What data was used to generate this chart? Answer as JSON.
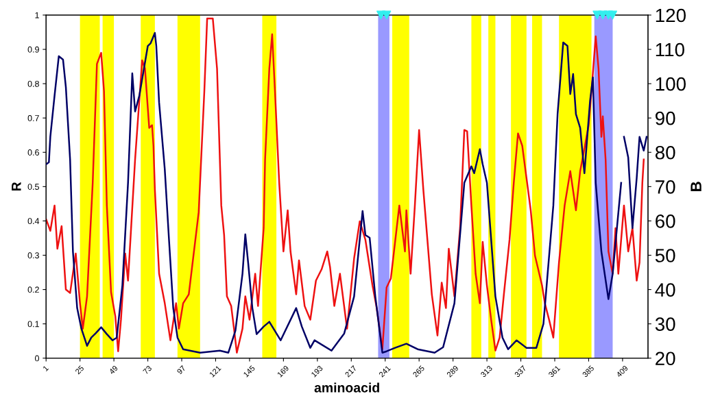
{
  "chart_data": {
    "type": "line",
    "xlabel": "aminoacid",
    "ylabel": "R",
    "y2label": "B",
    "xlim": [
      1,
      427
    ],
    "xticks": [
      1,
      25,
      49,
      73,
      97,
      121,
      145,
      169,
      193,
      217,
      241,
      265,
      289,
      313,
      337,
      361,
      385,
      409
    ],
    "ylim": [
      0,
      1
    ],
    "yticks": [
      0,
      0.1,
      0.2,
      0.3,
      0.4,
      0.5,
      0.6,
      0.7,
      0.8,
      0.9,
      1
    ],
    "y2lim": [
      20,
      120
    ],
    "y2ticks": [
      20,
      30,
      40,
      50,
      60,
      70,
      80,
      90,
      100,
      110,
      120
    ],
    "grid": false,
    "marker": "none",
    "line_style": "solid",
    "series": [
      {
        "color": "#000066",
        "x": [
          1,
          3,
          4,
          7,
          10,
          13,
          15,
          18,
          20,
          23,
          26,
          30,
          33,
          36,
          40,
          44,
          48,
          51,
          55,
          59,
          62,
          64,
          67,
          73,
          75,
          78,
          79,
          81,
          85,
          88,
          91,
          94,
          98,
          110,
          124,
          130,
          135,
          140,
          142,
          144,
          147,
          150,
          155,
          159,
          167,
          178,
          182,
          188,
          191,
          203,
          212,
          219,
          225,
          227,
          230,
          234,
          239,
          242,
          248,
          256,
          264,
          276,
          282,
          290,
          297,
          302,
          304,
          308,
          310,
          313,
          319,
          324,
          328,
          334,
          341,
          348,
          353,
          360,
          363,
          367,
          370,
          372,
          374,
          376,
          379,
          382,
          386,
          388,
          390,
          394,
          399,
          402,
          405,
          408,
          409,
          410,
          413,
          416,
          419,
          421,
          424,
          426
        ],
        "values": [
          0.565,
          0.571,
          0.645,
          0.765,
          0.88,
          0.87,
          0.79,
          0.579,
          0.311,
          0.146,
          0.086,
          0.036,
          0.06,
          0.072,
          0.09,
          0.07,
          0.052,
          0.06,
          0.212,
          0.511,
          0.83,
          0.719,
          0.765,
          0.91,
          0.918,
          0.948,
          0.91,
          0.745,
          0.551,
          0.345,
          0.146,
          0.06,
          0.026,
          0.016,
          0.022,
          0.016,
          0.08,
          0.246,
          0.361,
          0.279,
          0.146,
          0.07,
          0.092,
          0.106,
          0.052,
          0.146,
          0.092,
          0.03,
          0.052,
          0.022,
          0.072,
          0.18,
          0.429,
          0.359,
          0.351,
          0.18,
          0.016,
          0.02,
          0.03,
          0.042,
          0.026,
          0.016,
          0.032,
          0.16,
          0.511,
          0.559,
          0.539,
          0.609,
          0.565,
          0.511,
          0.18,
          0.06,
          0.026,
          0.052,
          0.03,
          0.03,
          0.1,
          0.445,
          0.711,
          0.92,
          0.91,
          0.77,
          0.828,
          0.711,
          0.671,
          0.539,
          0.75,
          0.818,
          0.511,
          0.311,
          0.172,
          0.246,
          0.379,
          0.511,
          null,
          0.645,
          0.585,
          0.379,
          0.525,
          0.645,
          0.605,
          0.645
        ]
      },
      {
        "color": "#ee1111",
        "axis": "y2",
        "x": [
          1,
          4,
          7,
          9,
          12,
          15,
          18,
          22,
          25,
          27,
          30,
          34,
          37,
          40,
          42,
          44,
          47,
          50,
          52,
          54,
          57,
          59,
          64,
          69,
          71,
          74,
          76,
          77,
          78,
          81,
          85,
          89,
          93,
          95,
          98,
          102,
          109,
          113,
          115,
          119,
          122,
          125,
          127,
          129,
          132,
          134,
          136,
          140,
          142,
          145,
          149,
          151,
          155,
          156,
          159,
          161,
          163,
          166,
          169,
          172,
          174,
          178,
          180,
          184,
          188,
          192,
          196,
          200,
          202,
          205,
          209,
          214,
          219,
          223,
          227,
          232,
          235,
          239,
          242,
          245,
          251,
          255,
          256,
          259,
          262,
          265,
          268,
          274,
          278,
          281,
          284,
          286,
          290,
          294,
          297,
          299,
          302,
          305,
          308,
          310,
          313,
          316,
          319,
          322,
          325,
          329,
          332,
          335,
          338,
          341,
          344,
          347,
          352,
          354,
          357,
          360,
          364,
          368,
          372,
          376,
          379,
          382,
          385,
          387,
          390,
          392,
          394,
          395,
          397,
          399,
          402,
          404,
          406,
          410,
          413,
          416,
          419,
          421,
          423,
          424
        ],
        "values": [
          60.5,
          57.1,
          64.5,
          51.9,
          58.5,
          40.0,
          39.0,
          50.5,
          36.0,
          28.6,
          38.0,
          71.1,
          105.8,
          109.0,
          97.8,
          64.5,
          39.2,
          32.2,
          22.0,
          31.2,
          50.5,
          42.6,
          77.9,
          106.8,
          104.4,
          87.1,
          87.9,
          81.9,
          69.1,
          44.6,
          36.0,
          25.2,
          36.0,
          28.6,
          36.0,
          38.6,
          62.5,
          97.8,
          119.0,
          119.0,
          104.4,
          64.5,
          55.9,
          38.0,
          35.2,
          28.6,
          21.6,
          28.6,
          38.0,
          31.2,
          44.6,
          35.2,
          57.9,
          77.9,
          104.4,
          114.4,
          97.8,
          71.1,
          51.1,
          63.1,
          51.1,
          38.6,
          48.5,
          35.2,
          31.2,
          42.6,
          45.9,
          51.1,
          46.5,
          35.2,
          44.6,
          28.6,
          49.1,
          59.9,
          54.5,
          41.2,
          34.6,
          22.6,
          40.6,
          43.2,
          64.5,
          51.1,
          63.1,
          44.6,
          64.5,
          86.5,
          69.1,
          38.6,
          26.6,
          42.0,
          34.6,
          51.9,
          38.0,
          57.9,
          86.5,
          86.1,
          64.5,
          44.6,
          36.0,
          53.9,
          41.2,
          31.2,
          22.2,
          26.0,
          38.6,
          54.5,
          71.1,
          85.5,
          81.9,
          72.5,
          63.1,
          49.9,
          41.2,
          36.0,
          31.2,
          26.0,
          47.9,
          64.5,
          74.5,
          63.1,
          74.5,
          81.1,
          87.9,
          97.8,
          113.8,
          104.4,
          84.5,
          90.5,
          77.9,
          51.1,
          44.6,
          57.9,
          44.6,
          64.5,
          51.1,
          57.9,
          42.6,
          47.9,
          71.1,
          77.9
        ]
      },
      {
        "type": "scatter",
        "color": "#33eeee",
        "marker": "triangle",
        "x": [
          238,
          242,
          391,
          395,
          399,
          402
        ],
        "values": [
          1,
          1,
          1,
          1,
          1,
          1
        ]
      }
    ],
    "bands": [
      {
        "axis": "x",
        "from": 25,
        "to": 39,
        "color": "#ffff00"
      },
      {
        "axis": "x",
        "from": 41,
        "to": 49,
        "color": "#ffff00"
      },
      {
        "axis": "x",
        "from": 68,
        "to": 78,
        "color": "#ffff00"
      },
      {
        "axis": "x",
        "from": 94,
        "to": 110,
        "color": "#ffff00"
      },
      {
        "axis": "x",
        "from": 154,
        "to": 164,
        "color": "#ffff00"
      },
      {
        "axis": "x",
        "from": 236,
        "to": 244,
        "color": "#9999ff"
      },
      {
        "axis": "x",
        "from": 246,
        "to": 258,
        "color": "#ffff00"
      },
      {
        "axis": "x",
        "from": 302,
        "to": 309,
        "color": "#ffff00"
      },
      {
        "axis": "x",
        "from": 314,
        "to": 319,
        "color": "#ffff00"
      },
      {
        "axis": "x",
        "from": 330,
        "to": 341,
        "color": "#ffff00"
      },
      {
        "axis": "x",
        "from": 345,
        "to": 352,
        "color": "#ffff00"
      },
      {
        "axis": "x",
        "from": 364,
        "to": 387,
        "color": "#ffff00"
      },
      {
        "axis": "x",
        "from": 389,
        "to": 402,
        "color": "#9999ff"
      }
    ]
  }
}
